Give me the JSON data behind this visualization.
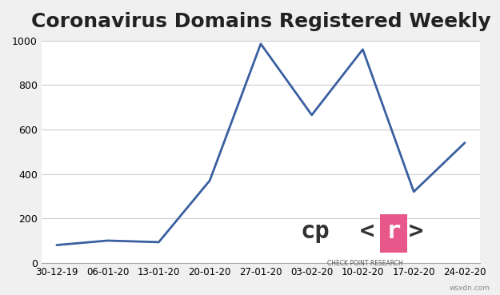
{
  "title": "Coronavirus Domains Registered Weekly",
  "x_labels": [
    "30-12-19",
    "06-01-20",
    "13-01-20",
    "20-01-20",
    "27-01-20",
    "03-02-20",
    "10-02-20",
    "17-02-20",
    "24-02-20"
  ],
  "y_values": [
    80,
    100,
    93,
    370,
    985,
    665,
    960,
    320,
    540
  ],
  "line_color": "#3a5fa0",
  "ylim": [
    0,
    1000
  ],
  "yticks": [
    0,
    200,
    400,
    600,
    800,
    1000
  ],
  "background_color": "#f0f0f0",
  "plot_bg_color": "#ffffff",
  "title_fontsize": 18,
  "grid_color": "#cccccc",
  "watermark": "wsxdn.com",
  "logo_pink": "#e8578a",
  "logo_text_color": "#333333"
}
